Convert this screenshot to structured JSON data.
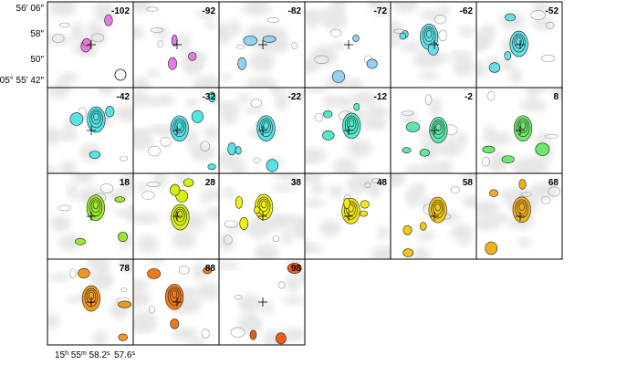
{
  "panels": [
    {
      "label": "-102",
      "color": "#e87be2"
    },
    {
      "label": "-92",
      "color": "#e87be2"
    },
    {
      "label": "-82",
      "color": "#8fd3f0"
    },
    {
      "label": "-72",
      "color": "#8fd3f0"
    },
    {
      "label": "-62",
      "color": "#66e0e8"
    },
    {
      "label": "-52",
      "color": "#66e0e8"
    },
    {
      "label": "-42",
      "color": "#55e3e3"
    },
    {
      "label": "-32",
      "color": "#55e3e3"
    },
    {
      "label": "-22",
      "color": "#55e3e3"
    },
    {
      "label": "-12",
      "color": "#55e8c8"
    },
    {
      "label": "-2",
      "color": "#5fe8a8"
    },
    {
      "label": "8",
      "color": "#6ee86a"
    },
    {
      "label": "18",
      "color": "#9be832"
    },
    {
      "label": "28",
      "color": "#d8ee10"
    },
    {
      "label": "38",
      "color": "#f2ee10"
    },
    {
      "label": "48",
      "color": "#f5e812"
    },
    {
      "label": "58",
      "color": "#f2c818"
    },
    {
      "label": "68",
      "color": "#f2b020"
    },
    {
      "label": "78",
      "color": "#f2981e"
    },
    {
      "label": "88",
      "color": "#f07a18"
    },
    {
      "label": "98",
      "color": "#ee5a12"
    }
  ],
  "y_labels": [
    "56′ 06″",
    "58″",
    "50″",
    "05° 55′ 42″"
  ],
  "x_labels": [
    [
      "15",
      "h",
      " 55",
      "m",
      " 58.2",
      "s"
    ],
    [
      "57.6",
      "s"
    ]
  ]
}
